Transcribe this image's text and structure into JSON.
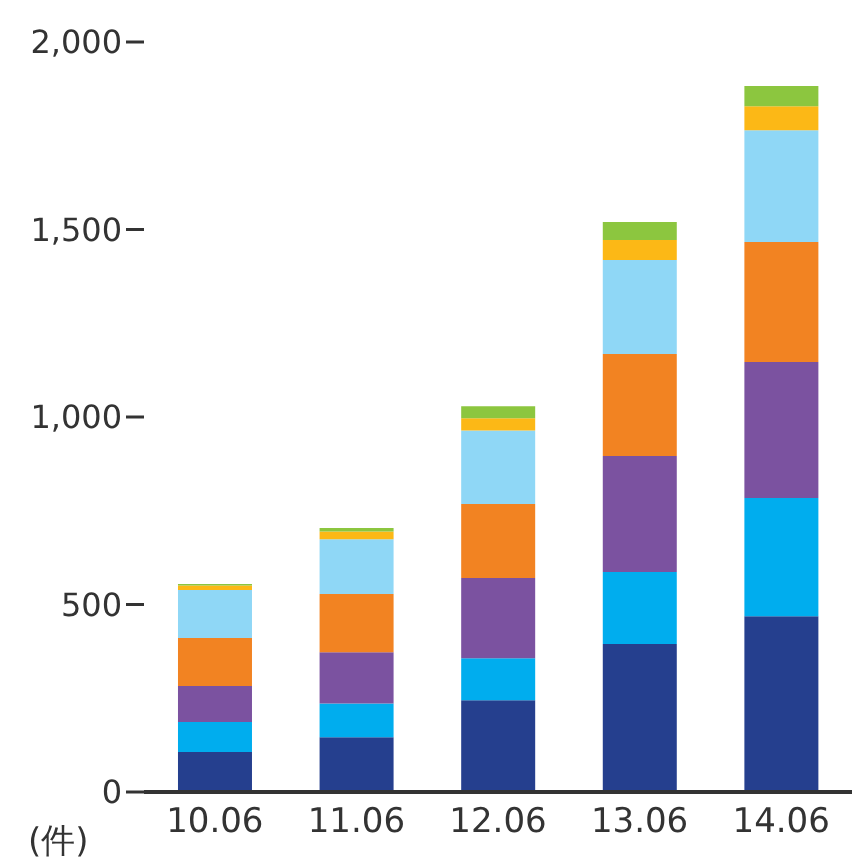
{
  "chart_data": {
    "type": "bar",
    "stacked": true,
    "ylabel": "(件)",
    "categories": [
      "10.06",
      "11.06",
      "12.06",
      "13.06",
      "14.06"
    ],
    "series": [
      {
        "color": "#253f8e",
        "values": [
          107,
          146,
          245,
          395,
          469
        ]
      },
      {
        "color": "#00adee",
        "values": [
          80,
          90,
          112,
          192,
          315
        ]
      },
      {
        "color": "#7b52a0",
        "values": [
          96,
          137,
          214,
          309,
          363
        ]
      },
      {
        "color": "#f28322",
        "values": [
          128,
          155,
          197,
          272,
          320
        ]
      },
      {
        "color": "#8fd7f6",
        "values": [
          128,
          146,
          196,
          251,
          298
        ]
      },
      {
        "color": "#fcb816",
        "values": [
          12,
          21,
          33,
          53,
          64
        ]
      },
      {
        "color": "#8cc63f",
        "values": [
          4,
          9,
          32,
          48,
          54
        ]
      }
    ],
    "ylim": [
      0,
      2000
    ],
    "yticks": [
      0,
      {
        "value": 500,
        "label": "500"
      },
      {
        "value": 1000,
        "label": "1,000"
      },
      {
        "value": 1500,
        "label": "1,500"
      },
      {
        "value": 2000,
        "label": "2,000"
      }
    ],
    "grid": false,
    "legend": false
  }
}
